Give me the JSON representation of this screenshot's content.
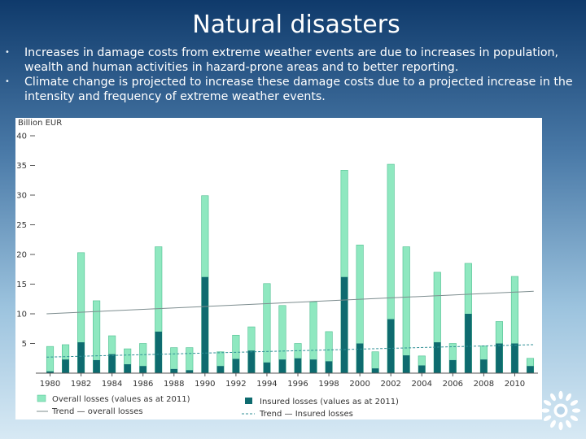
{
  "slide": {
    "title": "Natural disasters",
    "bullets": [
      "Increases in damage costs from extreme weather events are due to increases in population, wealth and human activities in hazard-prone areas and to better reporting.",
      "Climate change is projected to increase these damage costs due to a projected increase in the intensity and frequency of extreme weather events."
    ]
  },
  "colors": {
    "overall": "#8fe8c0",
    "overall_stroke": "#4fbf90",
    "insured": "#0e6b6f",
    "trend_overall": "#7c8c8e",
    "trend_insured": "#2f8f95"
  },
  "chart_data": {
    "type": "bar",
    "ylabel": "Billion EUR",
    "ylim": [
      0,
      40
    ],
    "yticks": [
      5,
      10,
      15,
      20,
      25,
      30,
      35,
      40
    ],
    "categories": [
      "1980",
      "1981",
      "1982",
      "1983",
      "1984",
      "1985",
      "1986",
      "1987",
      "1988",
      "1989",
      "1990",
      "1991",
      "1992",
      "1993",
      "1994",
      "1995",
      "1996",
      "1997",
      "1998",
      "1999",
      "2000",
      "2001",
      "2002",
      "2003",
      "2004",
      "2005",
      "2006",
      "2007",
      "2008",
      "2009",
      "2010",
      "2011"
    ],
    "xtick_labels": [
      "1980",
      "1982",
      "1984",
      "1986",
      "1988",
      "1990",
      "1992",
      "1994",
      "1996",
      "1998",
      "2000",
      "2002",
      "2004",
      "2006",
      "2008",
      "2010"
    ],
    "series": [
      {
        "name": "Overall losses (values as at 2011)",
        "values": [
          4.5,
          4.8,
          20.3,
          12.2,
          6.3,
          4.1,
          5.0,
          21.3,
          4.3,
          4.3,
          29.9,
          3.6,
          6.4,
          7.8,
          15.1,
          11.4,
          5.0,
          12.0,
          7.0,
          34.2,
          21.6,
          3.6,
          35.2,
          21.3,
          2.9,
          17.0,
          5.0,
          18.5,
          4.6,
          8.7,
          16.3,
          2.5
        ]
      },
      {
        "name": "Insured losses (values as at 2011)",
        "values": [
          0.3,
          2.3,
          5.2,
          2.2,
          3.2,
          1.5,
          1.2,
          7.0,
          0.7,
          0.5,
          16.2,
          1.2,
          2.4,
          3.8,
          1.8,
          2.3,
          2.5,
          2.3,
          2.0,
          16.2,
          5.0,
          0.8,
          9.1,
          3.0,
          1.3,
          5.2,
          2.2,
          10.0,
          2.3,
          5.0,
          5.0,
          1.2
        ]
      }
    ],
    "trends": [
      {
        "name": "Trend — overall losses",
        "start": 10.0,
        "end": 13.8
      },
      {
        "name": "Trend — Insured losses",
        "start": 2.7,
        "end": 4.8
      }
    ],
    "legend": {
      "overall": "Overall losses (values as at 2011)",
      "insured": "Insured losses (values as at 2011)",
      "trend_overall": "Trend — overall losses",
      "trend_insured": "Trend — Insured losses"
    }
  }
}
